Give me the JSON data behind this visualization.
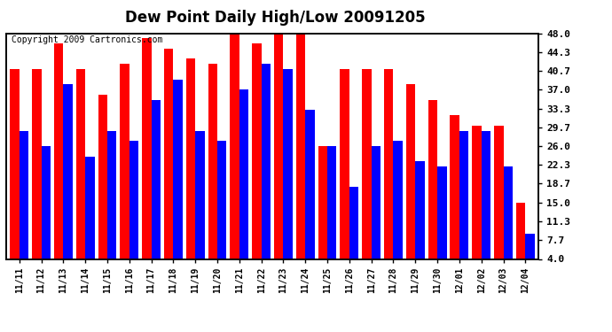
{
  "title": "Dew Point Daily High/Low 20091205",
  "copyright": "Copyright 2009 Cartronics.com",
  "dates": [
    "11/11",
    "11/12",
    "11/13",
    "11/14",
    "11/15",
    "11/16",
    "11/17",
    "11/18",
    "11/19",
    "11/20",
    "11/21",
    "11/22",
    "11/23",
    "11/24",
    "11/25",
    "11/26",
    "11/27",
    "11/28",
    "11/29",
    "11/30",
    "12/01",
    "12/02",
    "12/03",
    "12/04"
  ],
  "highs": [
    41.0,
    41.0,
    46.0,
    41.0,
    36.0,
    42.0,
    47.0,
    45.0,
    43.0,
    42.0,
    48.0,
    46.0,
    48.0,
    48.0,
    26.0,
    41.0,
    41.0,
    41.0,
    38.0,
    35.0,
    32.0,
    30.0,
    30.0,
    15.0
  ],
  "lows": [
    29.0,
    26.0,
    38.0,
    24.0,
    29.0,
    27.0,
    35.0,
    39.0,
    29.0,
    27.0,
    37.0,
    42.0,
    41.0,
    33.0,
    26.0,
    18.0,
    26.0,
    27.0,
    23.0,
    22.0,
    29.0,
    29.0,
    22.0,
    9.0
  ],
  "high_color": "#ff0000",
  "low_color": "#0000ff",
  "bg_color": "#ffffff",
  "plot_bg_color": "#ffffff",
  "grid_color": "#b0b0b0",
  "yticks": [
    4.0,
    7.7,
    11.3,
    15.0,
    18.7,
    22.3,
    26.0,
    29.7,
    33.3,
    37.0,
    40.7,
    44.3,
    48.0
  ],
  "ymin": 4.0,
  "ymax": 48.0,
  "title_fontsize": 12,
  "copyright_fontsize": 7
}
